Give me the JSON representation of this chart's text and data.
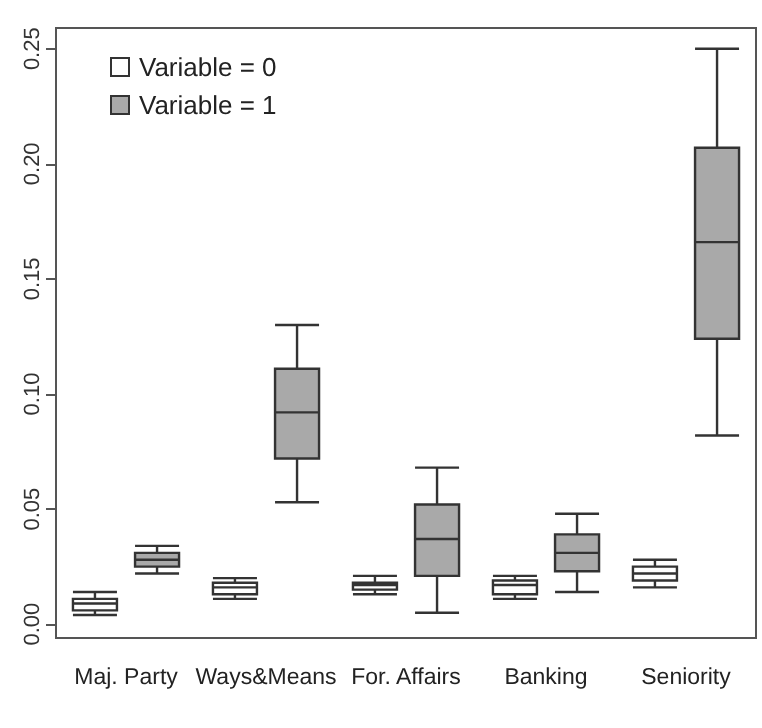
{
  "chart_data": {
    "type": "box",
    "categories": [
      "Maj. Party",
      "Ways&Means",
      "For. Affairs",
      "Banking",
      "Seniority"
    ],
    "ylim": [
      -0.006,
      0.259
    ],
    "yticks": [
      {
        "value": 0,
        "label": "0.00"
      },
      {
        "value": 0.05,
        "label": "0.05"
      },
      {
        "value": 0.1,
        "label": "0.10"
      },
      {
        "value": 0.15,
        "label": "0.15"
      },
      {
        "value": 0.2,
        "label": "0.20"
      },
      {
        "value": 0.25,
        "label": "0.25"
      }
    ],
    "legend": "top left",
    "series": [
      {
        "name": "Variable = 0",
        "color": "#ffffff",
        "boxes": [
          {
            "low": 0.004,
            "q1": 0.006,
            "median": 0.009,
            "q3": 0.011,
            "high": 0.014
          },
          {
            "low": 0.011,
            "q1": 0.013,
            "median": 0.016,
            "q3": 0.018,
            "high": 0.02
          },
          {
            "low": 0.013,
            "q1": 0.015,
            "median": 0.017,
            "q3": 0.018,
            "high": 0.021
          },
          {
            "low": 0.011,
            "q1": 0.013,
            "median": 0.017,
            "q3": 0.019,
            "high": 0.021
          },
          {
            "low": 0.016,
            "q1": 0.019,
            "median": 0.022,
            "q3": 0.025,
            "high": 0.028
          }
        ]
      },
      {
        "name": "Variable = 1",
        "color": "#a9a9a9",
        "boxes": [
          {
            "low": 0.022,
            "q1": 0.025,
            "median": 0.028,
            "q3": 0.031,
            "high": 0.034
          },
          {
            "low": 0.053,
            "q1": 0.072,
            "median": 0.092,
            "q3": 0.111,
            "high": 0.13
          },
          {
            "low": 0.005,
            "q1": 0.021,
            "median": 0.037,
            "q3": 0.052,
            "high": 0.068
          },
          {
            "low": 0.014,
            "q1": 0.023,
            "median": 0.031,
            "q3": 0.039,
            "high": 0.048
          },
          {
            "low": 0.082,
            "q1": 0.124,
            "median": 0.166,
            "q3": 0.207,
            "high": 0.25
          }
        ]
      }
    ]
  }
}
